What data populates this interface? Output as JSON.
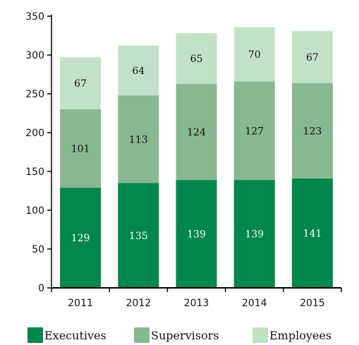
{
  "chart_data": {
    "type": "bar",
    "stacked": true,
    "categories": [
      "2011",
      "2012",
      "2013",
      "2014",
      "2015"
    ],
    "series": [
      {
        "name": "Executives",
        "values": [
          129,
          135,
          139,
          139,
          141
        ],
        "color": "#00874b",
        "label_color": "#ffffff"
      },
      {
        "name": "Supervisors",
        "values": [
          101,
          113,
          124,
          127,
          123
        ],
        "color": "#88b890",
        "label_color": "#111111"
      },
      {
        "name": "Employees",
        "values": [
          67,
          64,
          65,
          70,
          67
        ],
        "color": "#c2e2c8",
        "label_color": "#111111"
      }
    ],
    "ylim": [
      0,
      350
    ],
    "yticks": [
      0,
      50,
      100,
      150,
      200,
      250,
      300,
      350
    ],
    "grid": false,
    "legend_position": "bottom",
    "title": "",
    "xlabel": "",
    "ylabel": ""
  }
}
